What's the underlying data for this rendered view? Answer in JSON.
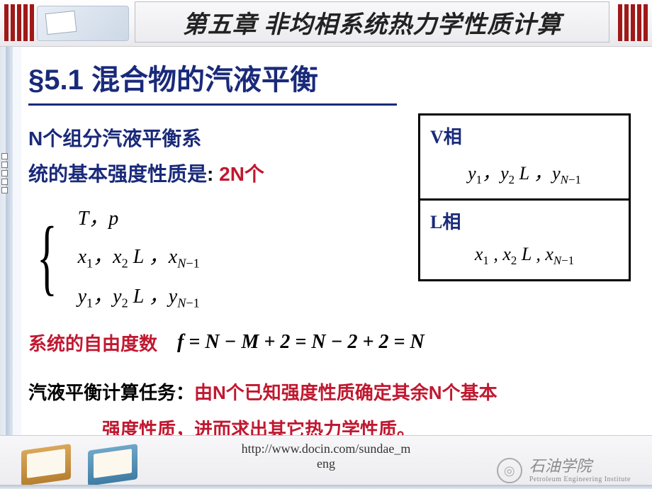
{
  "header": {
    "chapter_title": "第五章 非均相系统热力学性质计算",
    "stripe_color": "#a01818"
  },
  "section": {
    "number": "§5.1",
    "title": "混合物的汽液平衡"
  },
  "intro": {
    "line1_a": "N",
    "line1_b": "个组分汽液平衡系",
    "line2_a": "统的基本强度性质是",
    "line2_b": "2N个"
  },
  "brace": {
    "row1": "T，p",
    "row2": "x₁，x₂ L ，x_{N−1}",
    "row3": "y₁，y₂ L ，y_{N−1}"
  },
  "phases": {
    "v": {
      "title": "V相",
      "vars": "y₁，y₂ L ，y_{N−1}"
    },
    "l": {
      "title": "L相",
      "vars": "x₁ , x₂ L  , x_{N−1}"
    }
  },
  "dof": {
    "label": "系统的自由度数",
    "formula": "f = N − M + 2 = N − 2 + 2 = N"
  },
  "task": {
    "lead": "汽液平衡计算任务：",
    "body1": "由N个已知强度性质确定其余N个基本",
    "body2": "强度性质，进而求出其它热力学性质。"
  },
  "footer": {
    "url": "http://www.docin.com/sundae_m\neng",
    "institution_cn": "石油学院",
    "institution_en": "Petroleum Engineering Institute"
  },
  "colors": {
    "heading_blue": "#1a2a7a",
    "highlight_red": "#c01830",
    "text_black": "#000000"
  }
}
